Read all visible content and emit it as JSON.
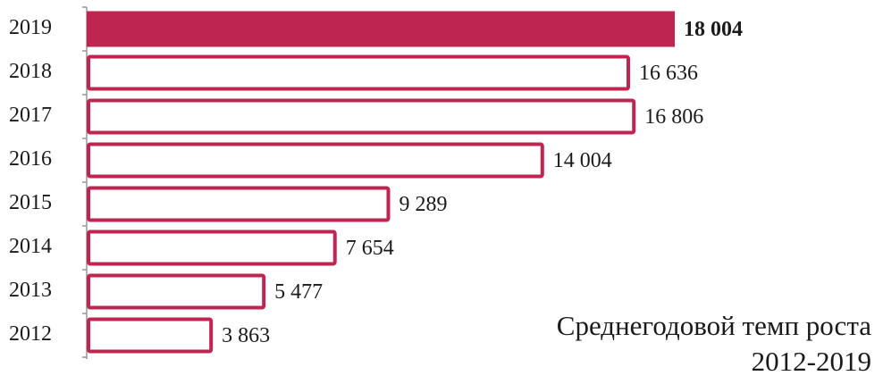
{
  "chart_data": {
    "type": "hbar",
    "categories": [
      "2019",
      "2018",
      "2017",
      "2016",
      "2015",
      "2014",
      "2013",
      "2012"
    ],
    "values": [
      18004,
      16636,
      16806,
      14004,
      9289,
      7654,
      5477,
      3863
    ],
    "value_labels": [
      "18 004",
      "16 636",
      "16 806",
      "14 004",
      "9 289",
      "7 654",
      "5 477",
      "3 863"
    ],
    "color": "#be2651",
    "bar_fills": [
      "#be2651",
      "#ffffff",
      "#ffffff",
      "#ffffff",
      "#ffffff",
      "#ffffff",
      "#ffffff",
      "#ffffff"
    ],
    "annotation": [
      "Среднегодовой темп роста",
      "2012-2019"
    ]
  }
}
